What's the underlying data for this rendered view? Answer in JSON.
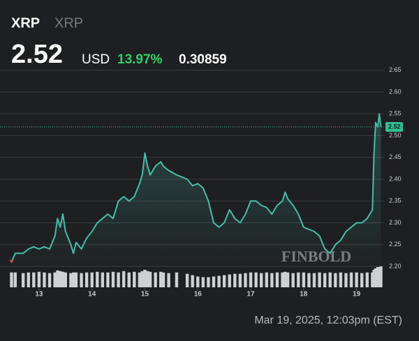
{
  "chart_data": {
    "type": "line",
    "title": "XRP",
    "subtitle": "XRP",
    "price": "2.52",
    "currency": "USD",
    "change_percent": "13.97%",
    "change": "0.30859",
    "timestamp": "Mar 19, 2025, 12:03pm (EST)",
    "watermark": "FINBOLD",
    "color": "#45bfa8",
    "x": [
      12.48,
      12.55,
      12.7,
      12.8,
      12.9,
      13.0,
      13.1,
      13.2,
      13.3,
      13.35,
      13.4,
      13.45,
      13.5,
      13.6,
      13.65,
      13.7,
      13.8,
      13.9,
      14.0,
      14.1,
      14.2,
      14.3,
      14.4,
      14.5,
      14.6,
      14.7,
      14.8,
      14.9,
      14.95,
      15.0,
      15.05,
      15.1,
      15.2,
      15.3,
      15.35,
      15.45,
      15.6,
      15.8,
      15.9,
      16.0,
      16.1,
      16.2,
      16.3,
      16.4,
      16.5,
      16.6,
      16.7,
      16.8,
      16.9,
      17.0,
      17.1,
      17.2,
      17.3,
      17.4,
      17.5,
      17.6,
      17.65,
      17.7,
      17.8,
      17.9,
      18.0,
      18.1,
      18.2,
      18.3,
      18.4,
      18.5,
      18.6,
      18.7,
      18.8,
      18.9,
      19.0,
      19.1,
      19.2,
      19.3,
      19.33,
      19.36,
      19.4,
      19.43,
      19.46
    ],
    "values": [
      2.21,
      2.23,
      2.23,
      2.24,
      2.245,
      2.24,
      2.245,
      2.24,
      2.27,
      2.31,
      2.29,
      2.32,
      2.28,
      2.25,
      2.23,
      2.255,
      2.24,
      2.265,
      2.28,
      2.3,
      2.31,
      2.32,
      2.31,
      2.35,
      2.36,
      2.35,
      2.36,
      2.39,
      2.41,
      2.46,
      2.43,
      2.41,
      2.43,
      2.44,
      2.43,
      2.42,
      2.41,
      2.4,
      2.385,
      2.39,
      2.38,
      2.35,
      2.3,
      2.29,
      2.3,
      2.33,
      2.31,
      2.3,
      2.32,
      2.35,
      2.35,
      2.34,
      2.335,
      2.32,
      2.34,
      2.35,
      2.37,
      2.355,
      2.34,
      2.32,
      2.29,
      2.285,
      2.28,
      2.27,
      2.24,
      2.23,
      2.25,
      2.26,
      2.28,
      2.29,
      2.3,
      2.3,
      2.31,
      2.33,
      2.46,
      2.53,
      2.52,
      2.55,
      2.52
    ],
    "volume": [
      22,
      22,
      21,
      22,
      22,
      23,
      22,
      21,
      22,
      25,
      24,
      23,
      22,
      21,
      22,
      22,
      21,
      22,
      22,
      23,
      22,
      22,
      23,
      22,
      24,
      22,
      23,
      22,
      24,
      26,
      24,
      23,
      22,
      23,
      22,
      21,
      22,
      20,
      18,
      16,
      15,
      15,
      16,
      17,
      18,
      19,
      20,
      20,
      21,
      22,
      22,
      21,
      22,
      21,
      22,
      22,
      23,
      22,
      21,
      22,
      22,
      21,
      21,
      22,
      21,
      22,
      21,
      22,
      21,
      22,
      22,
      21,
      22,
      22,
      26,
      28,
      30,
      30,
      31
    ],
    "xlim": [
      12.46,
      19.52
    ],
    "xticks": [
      13,
      14,
      15,
      16,
      17,
      18,
      19
    ],
    "ylim": [
      2.152,
      2.656
    ],
    "yticks": [
      {
        "value": 2.2,
        "label": "2.20"
      },
      {
        "value": 2.25,
        "label": "2.25"
      },
      {
        "value": 2.3,
        "label": "2.30"
      },
      {
        "value": 2.35,
        "label": "2.35"
      },
      {
        "value": 2.4,
        "label": "2.40"
      },
      {
        "value": 2.45,
        "label": "2.45"
      },
      {
        "value": 2.5,
        "label": "2.50"
      },
      {
        "value": 2.55,
        "label": "2.55"
      },
      {
        "value": 2.6,
        "label": "2.60"
      },
      {
        "value": 2.65,
        "label": "2.65"
      }
    ],
    "grid": true
  }
}
